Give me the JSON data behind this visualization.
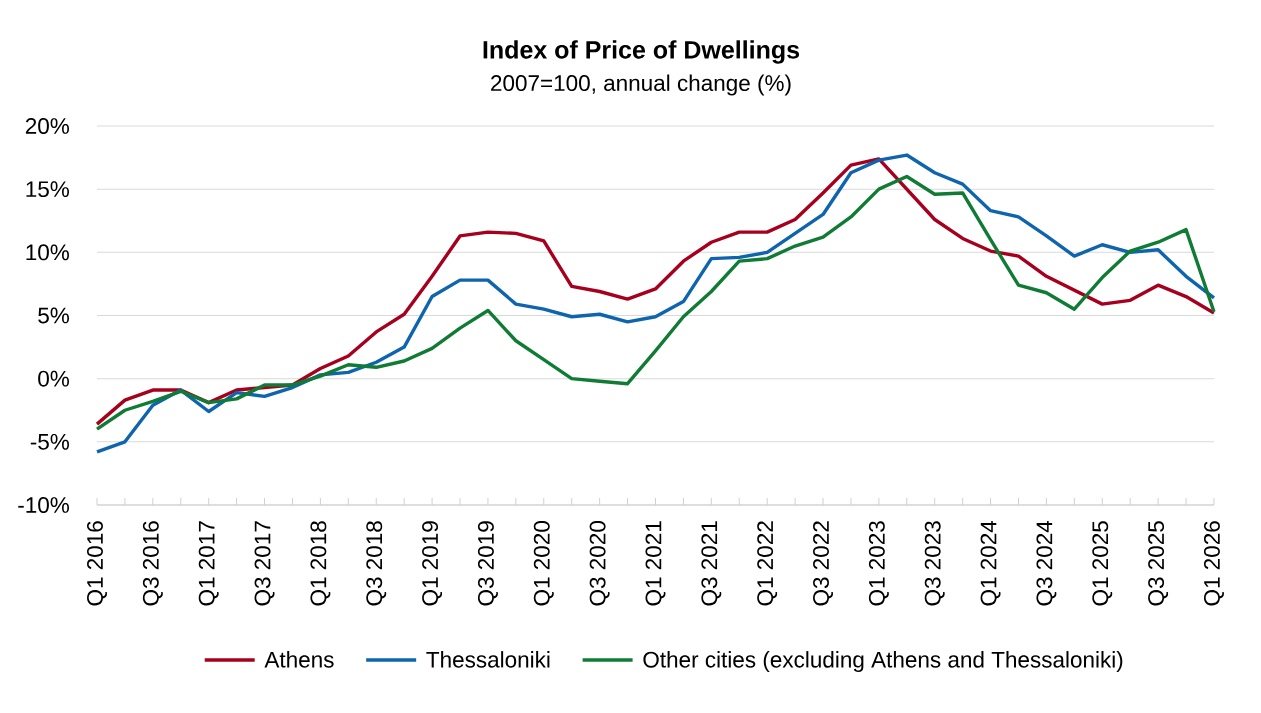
{
  "chart_data": {
    "type": "line",
    "title": "Index of Price of Dwellings",
    "subtitle": "2007=100, annual change (%)",
    "categories": [
      "Q1 2016",
      null,
      "Q3 2016",
      null,
      "Q1 2017",
      null,
      "Q3 2017",
      null,
      "Q1 2018",
      null,
      "Q3 2018",
      null,
      "Q1 2019",
      null,
      "Q3 2019",
      null,
      "Q1 2020",
      null,
      "Q3 2020",
      null,
      "Q1 2021",
      null,
      "Q3 2021",
      null,
      "Q1 2022",
      null,
      "Q3 2022",
      null,
      "Q1 2023",
      null,
      "Q3 2023",
      null,
      "Q1 2024",
      null,
      "Q3 2024",
      null,
      "Q1 2025",
      null,
      "Q3 2025",
      null,
      "Q1 2026"
    ],
    "series": [
      {
        "name": "Athens",
        "color": "#a6001e",
        "values": [
          -3.6,
          -1.7,
          -0.9,
          -0.9,
          -1.9,
          -0.9,
          -0.7,
          -0.5,
          0.8,
          1.8,
          3.7,
          5.1,
          8.1,
          11.3,
          11.6,
          11.5,
          10.9,
          7.3,
          6.9,
          6.3,
          7.1,
          9.3,
          10.8,
          11.6,
          11.6,
          12.6,
          14.7,
          16.9,
          17.4,
          15.0,
          12.6,
          11.1,
          10.1,
          9.7,
          8.1,
          7.0,
          5.9,
          6.2,
          7.4,
          6.5,
          5.2
        ]
      },
      {
        "name": "Thessaloniki",
        "color": "#0e65ad",
        "values": [
          -5.8,
          -5.0,
          -2.1,
          -0.9,
          -2.6,
          -1.1,
          -1.4,
          -0.7,
          0.3,
          0.5,
          1.3,
          2.5,
          6.5,
          7.8,
          7.8,
          5.9,
          5.5,
          4.9,
          5.1,
          4.5,
          4.9,
          6.1,
          9.5,
          9.6,
          10.0,
          11.5,
          13.0,
          16.3,
          17.3,
          17.7,
          16.3,
          15.4,
          13.3,
          12.8,
          11.3,
          9.7,
          10.6,
          10.0,
          10.2,
          8.1,
          6.4
        ]
      },
      {
        "name": "Other cities (excluding Athens and Thessaloniki)",
        "color": "#0f7b35",
        "values": [
          -4.0,
          -2.5,
          -1.8,
          -1.0,
          -1.9,
          -1.6,
          -0.5,
          -0.5,
          0.2,
          1.1,
          0.9,
          1.4,
          2.4,
          4.0,
          5.4,
          3.0,
          1.5,
          0.0,
          -0.2,
          -0.4,
          2.2,
          4.9,
          6.9,
          9.3,
          9.5,
          10.5,
          11.2,
          12.8,
          15.0,
          16.0,
          14.6,
          14.7,
          11.0,
          7.4,
          6.8,
          5.5,
          8.0,
          10.1,
          10.8,
          11.8,
          5.3
        ]
      }
    ],
    "ylim": [
      -10,
      20
    ],
    "yticks": [
      {
        "value": -10,
        "label": "-10%"
      },
      {
        "value": -5,
        "label": "-5%"
      },
      {
        "value": 0,
        "label": "0%"
      },
      {
        "value": 5,
        "label": "5%"
      },
      {
        "value": 10,
        "label": "10%"
      },
      {
        "value": 15,
        "label": "15%"
      },
      {
        "value": 20,
        "label": "20%"
      }
    ],
    "grid": "y",
    "legend": "bottom",
    "marker": "none",
    "line_style": "solid"
  }
}
